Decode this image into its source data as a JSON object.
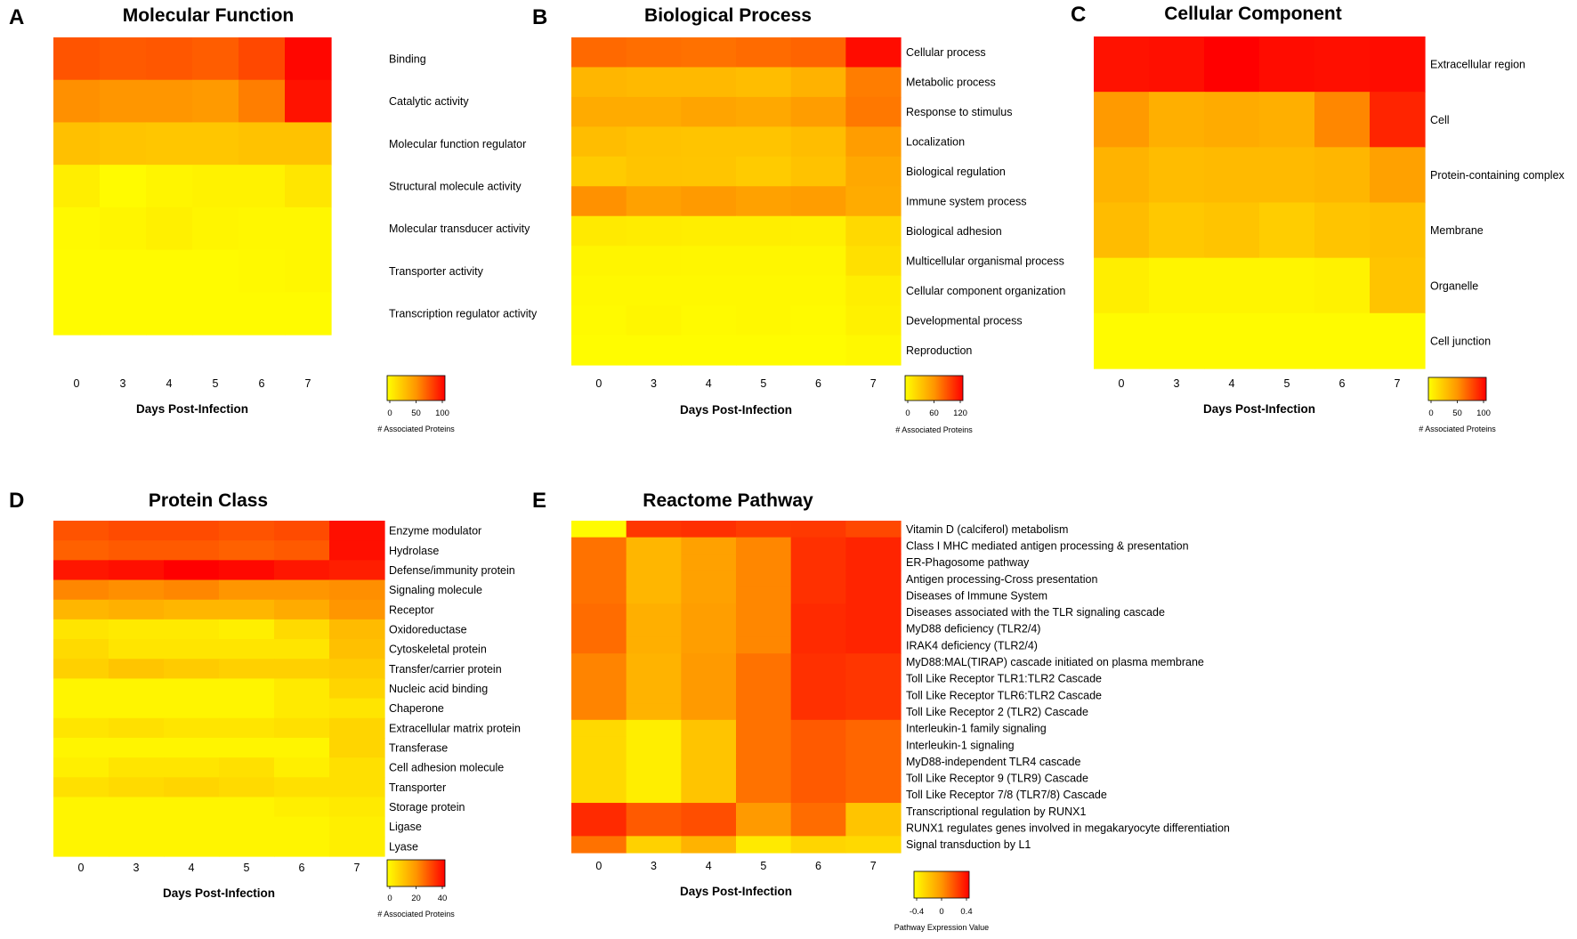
{
  "chart_data": [
    {
      "type": "heatmap",
      "panel": "A",
      "title": "Molecular Function",
      "xlabel": "Days Post-Infection",
      "x": [
        "0",
        "3",
        "4",
        "5",
        "6",
        "7"
      ],
      "rows": [
        "Binding",
        "Catalytic activity",
        "Molecular function regulator",
        "Structural molecule activity",
        "Molecular transducer activity",
        "Transporter activity",
        "Transcription regulator activity"
      ],
      "values": [
        [
          72,
          70,
          71,
          69,
          76,
          98
        ],
        [
          52,
          50,
          50,
          48,
          58,
          94
        ],
        [
          30,
          28,
          27,
          27,
          29,
          29
        ],
        [
          8,
          2,
          5,
          6,
          6,
          12
        ],
        [
          3,
          5,
          7,
          5,
          4,
          4
        ],
        [
          2,
          2,
          2,
          2,
          3,
          4
        ],
        [
          2,
          2,
          2,
          2,
          2,
          2
        ]
      ],
      "colorbar": {
        "min": 0,
        "max": 100,
        "ticks": [
          "0",
          "50",
          "100"
        ],
        "title": "# Associated Proteins"
      }
    },
    {
      "type": "heatmap",
      "panel": "B",
      "title": "Biological Process",
      "xlabel": "Days Post-Infection",
      "x": [
        "0",
        "3",
        "4",
        "5",
        "6",
        "7"
      ],
      "rows": [
        "Cellular process",
        "Metabolic process",
        "Response to stimulus",
        "Localization",
        "Biological regulation",
        "Immune system process",
        "Biological adhesion",
        "Multicellular organismal process",
        "Cellular component organization",
        "Developmental process",
        "Reproduction"
      ],
      "values": [
        [
          78,
          76,
          75,
          77,
          80,
          115
        ],
        [
          42,
          40,
          40,
          38,
          44,
          70
        ],
        [
          48,
          48,
          52,
          50,
          56,
          72
        ],
        [
          38,
          35,
          34,
          34,
          38,
          56
        ],
        [
          30,
          34,
          33,
          30,
          35,
          50
        ],
        [
          62,
          54,
          58,
          54,
          56,
          48
        ],
        [
          12,
          11,
          10,
          10,
          9,
          22
        ],
        [
          6,
          6,
          5,
          5,
          5,
          18
        ],
        [
          4,
          4,
          4,
          4,
          4,
          10
        ],
        [
          3,
          5,
          3,
          4,
          3,
          8
        ],
        [
          2,
          2,
          2,
          2,
          2,
          4
        ]
      ],
      "colorbar": {
        "min": 0,
        "max": 120,
        "ticks": [
          "0",
          "60",
          "120"
        ],
        "title": "# Associated Proteins"
      }
    },
    {
      "type": "heatmap",
      "panel": "C",
      "title": "Cellular Component",
      "xlabel": "Days Post-Infection",
      "x": [
        "0",
        "3",
        "4",
        "5",
        "6",
        "7"
      ],
      "rows": [
        "Extracellular region",
        "Cell",
        "Protein-containing complex",
        "Membrane",
        "Organelle",
        "Cell junction"
      ],
      "values": [
        [
          94,
          95,
          100,
          96,
          95,
          96
        ],
        [
          48,
          38,
          40,
          38,
          55,
          88
        ],
        [
          36,
          32,
          33,
          33,
          35,
          45
        ],
        [
          32,
          26,
          28,
          24,
          28,
          30
        ],
        [
          8,
          5,
          5,
          5,
          6,
          28
        ],
        [
          2,
          2,
          2,
          2,
          2,
          2
        ]
      ],
      "colorbar": {
        "min": 0,
        "max": 100,
        "ticks": [
          "0",
          "50",
          "100"
        ],
        "title": "# Associated Proteins"
      }
    },
    {
      "type": "heatmap",
      "panel": "D",
      "title": "Protein Class",
      "xlabel": "Days Post-Infection",
      "x": [
        "0",
        "3",
        "4",
        "5",
        "6",
        "7"
      ],
      "rows": [
        "Enzyme modulator",
        "Hydrolase",
        "Defense/immunity protein",
        "Signaling molecule",
        "Receptor",
        "Oxidoreductase",
        "Cytoskeletal protein",
        "Transfer/carrier protein",
        "Nucleic acid binding",
        "Chaperone",
        "Extracellular matrix protein",
        "Transferase",
        "Cell adhesion molecule",
        "Transporter",
        "Storage protein",
        "Ligase",
        "Lyase"
      ],
      "values": [
        [
          29,
          30,
          30,
          29,
          30,
          38
        ],
        [
          27,
          28,
          28,
          27,
          28,
          38
        ],
        [
          37,
          38,
          40,
          39,
          37,
          36
        ],
        [
          22,
          21,
          22,
          20,
          20,
          21
        ],
        [
          14,
          15,
          14,
          14,
          16,
          20
        ],
        [
          5,
          4,
          4,
          3,
          7,
          13
        ],
        [
          7,
          5,
          5,
          5,
          5,
          12
        ],
        [
          9,
          11,
          10,
          9,
          9,
          10
        ],
        [
          2,
          2,
          2,
          2,
          4,
          8
        ],
        [
          2,
          2,
          2,
          2,
          4,
          5
        ],
        [
          5,
          6,
          5,
          5,
          6,
          8
        ],
        [
          2,
          2,
          2,
          2,
          2,
          8
        ],
        [
          3,
          5,
          5,
          6,
          3,
          6
        ],
        [
          6,
          7,
          8,
          7,
          6,
          6
        ],
        [
          2,
          2,
          2,
          2,
          3,
          4
        ],
        [
          2,
          2,
          2,
          2,
          2,
          3
        ],
        [
          2,
          2,
          2,
          2,
          2,
          3
        ]
      ],
      "colorbar": {
        "min": 0,
        "max": 40,
        "ticks": [
          "0",
          "20",
          "40"
        ],
        "title": "# Associated Proteins"
      }
    },
    {
      "type": "heatmap",
      "panel": "E",
      "title": "Reactome Pathway",
      "xlabel": "Days Post-Infection",
      "x": [
        "0",
        "3",
        "4",
        "5",
        "6",
        "7"
      ],
      "rows": [
        "Vitamin D (calciferol) metabolism",
        "Class I MHC mediated antigen processing & presentation",
        "ER-Phagosome pathway",
        "Antigen processing-Cross presentation",
        "Diseases of Immune System",
        "Diseases associated with the TLR signaling cascade",
        "MyD88 deficiency (TLR2/4)",
        "IRAK4 deficiency (TLR2/4)",
        "MyD88:MAL(TIRAP) cascade initiated on plasma membrane",
        "Toll Like Receptor TLR1:TLR2 Cascade",
        "Toll Like Receptor TLR6:TLR2 Cascade",
        "Toll Like Receptor 2 (TLR2) Cascade",
        "Interleukin-1 family signaling",
        "Interleukin-1 signaling",
        "MyD88-independent TLR4 cascade",
        "Toll Like Receptor 9 (TLR9) Cascade",
        "Toll Like Receptor 7/8 (TLR7/8) Cascade",
        "Transcriptional regulation by RUNX1",
        "RUNX1 regulates genes involved in megakaryocyte differentiation",
        "Signal transduction by L1"
      ],
      "values": [
        [
          -0.48,
          0.32,
          0.34,
          0.3,
          0.31,
          0.26
        ],
        [
          0.12,
          -0.15,
          -0.05,
          0.05,
          0.34,
          0.38
        ],
        [
          0.12,
          -0.15,
          -0.05,
          0.05,
          0.34,
          0.38
        ],
        [
          0.12,
          -0.15,
          -0.05,
          0.05,
          0.34,
          0.38
        ],
        [
          0.12,
          -0.15,
          -0.05,
          0.05,
          0.34,
          0.38
        ],
        [
          0.14,
          -0.12,
          -0.04,
          0.05,
          0.36,
          0.38
        ],
        [
          0.14,
          -0.12,
          -0.04,
          0.05,
          0.36,
          0.38
        ],
        [
          0.14,
          -0.12,
          -0.04,
          0.05,
          0.36,
          0.38
        ],
        [
          0.06,
          -0.14,
          -0.02,
          0.12,
          0.34,
          0.32
        ],
        [
          0.06,
          -0.14,
          -0.02,
          0.12,
          0.34,
          0.32
        ],
        [
          0.06,
          -0.14,
          -0.02,
          0.12,
          0.34,
          0.32
        ],
        [
          0.06,
          -0.14,
          -0.02,
          0.12,
          0.34,
          0.32
        ],
        [
          -0.32,
          -0.42,
          -0.22,
          0.12,
          0.2,
          0.16
        ],
        [
          -0.32,
          -0.42,
          -0.22,
          0.12,
          0.2,
          0.16
        ],
        [
          -0.32,
          -0.42,
          -0.22,
          0.12,
          0.2,
          0.16
        ],
        [
          -0.32,
          -0.42,
          -0.22,
          0.12,
          0.2,
          0.16
        ],
        [
          -0.32,
          -0.42,
          -0.22,
          0.12,
          0.2,
          0.16
        ],
        [
          0.36,
          0.2,
          0.24,
          -0.02,
          0.14,
          -0.22
        ],
        [
          0.36,
          0.2,
          0.24,
          -0.02,
          0.14,
          -0.22
        ],
        [
          0.12,
          -0.28,
          -0.14,
          -0.4,
          -0.3,
          -0.32
        ]
      ],
      "colorbar": {
        "min": -0.5,
        "max": 0.5,
        "ticks": [
          "-0.4",
          "0",
          "0.4"
        ],
        "title": "Pathway Expression Value"
      }
    }
  ]
}
